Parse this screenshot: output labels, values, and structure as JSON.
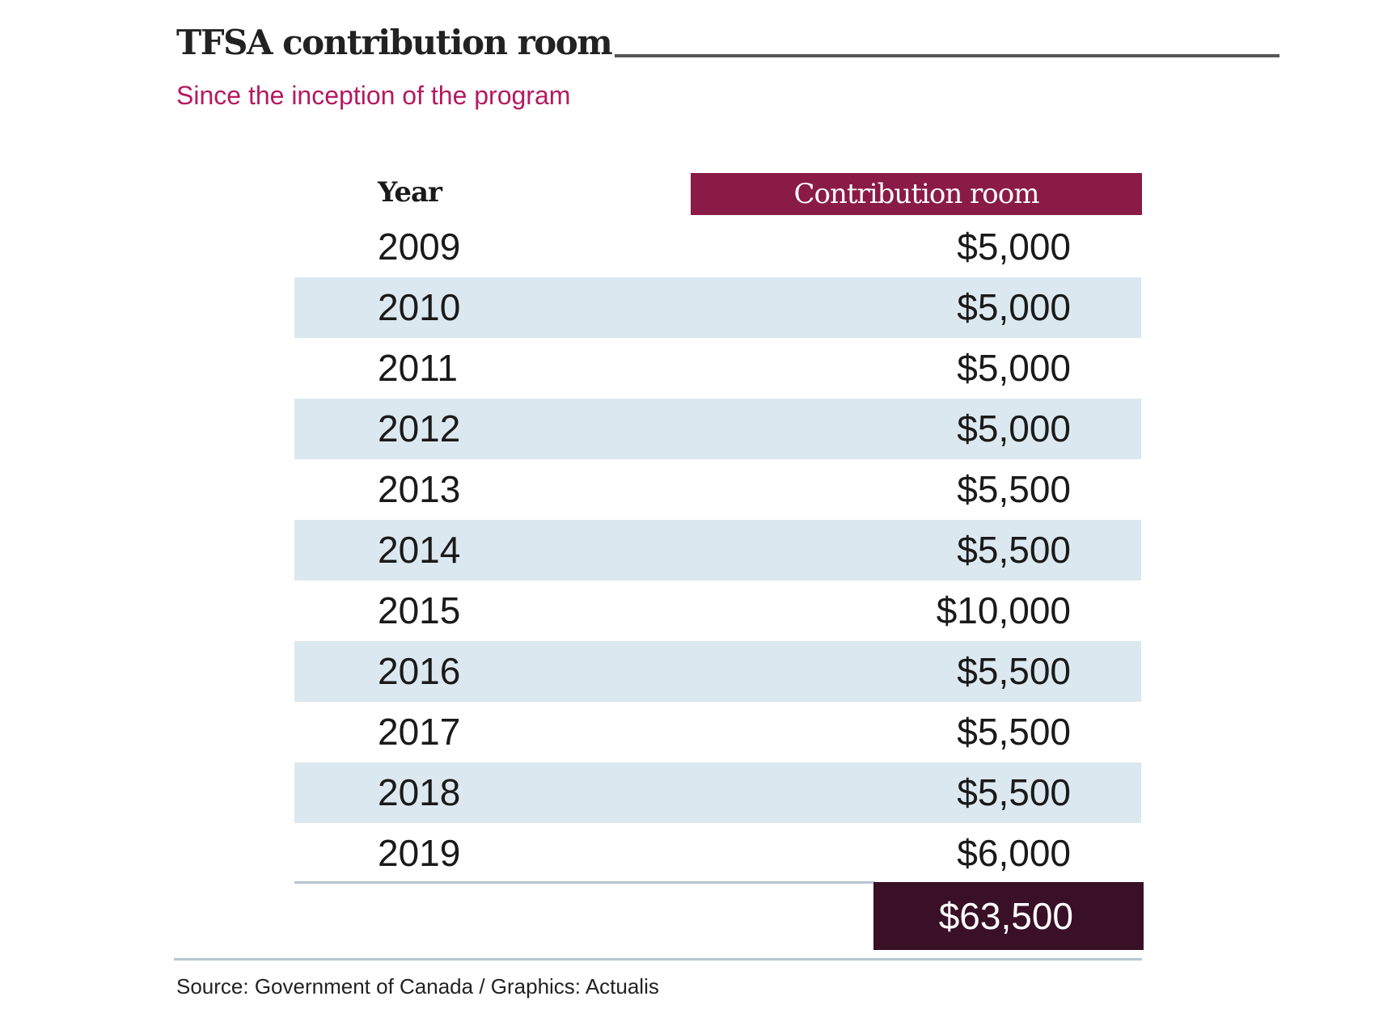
{
  "title": "TFSA contribution room",
  "subtitle": "Since the inception of the program",
  "table": {
    "headers": {
      "year": "Year",
      "room": "Contribution room"
    },
    "rows": [
      {
        "year": "2009",
        "room": "$5,000"
      },
      {
        "year": "2010",
        "room": "$5,000"
      },
      {
        "year": "2011",
        "room": "$5,000"
      },
      {
        "year": "2012",
        "room": "$5,000"
      },
      {
        "year": "2013",
        "room": "$5,500"
      },
      {
        "year": "2014",
        "room": "$5,500"
      },
      {
        "year": "2015",
        "room": "$10,000"
      },
      {
        "year": "2016",
        "room": "$5,500"
      },
      {
        "year": "2017",
        "room": "$5,500"
      },
      {
        "year": "2018",
        "room": "$5,500"
      },
      {
        "year": "2019",
        "room": "$6,000"
      }
    ],
    "total": "$63,500"
  },
  "source": "Source: Government of Canada  /  Graphics: Actualis",
  "colors": {
    "header": "#8a1b46",
    "total": "#3a1026",
    "stripe": "#dbe8ef",
    "subtitle": "#b51a60"
  }
}
